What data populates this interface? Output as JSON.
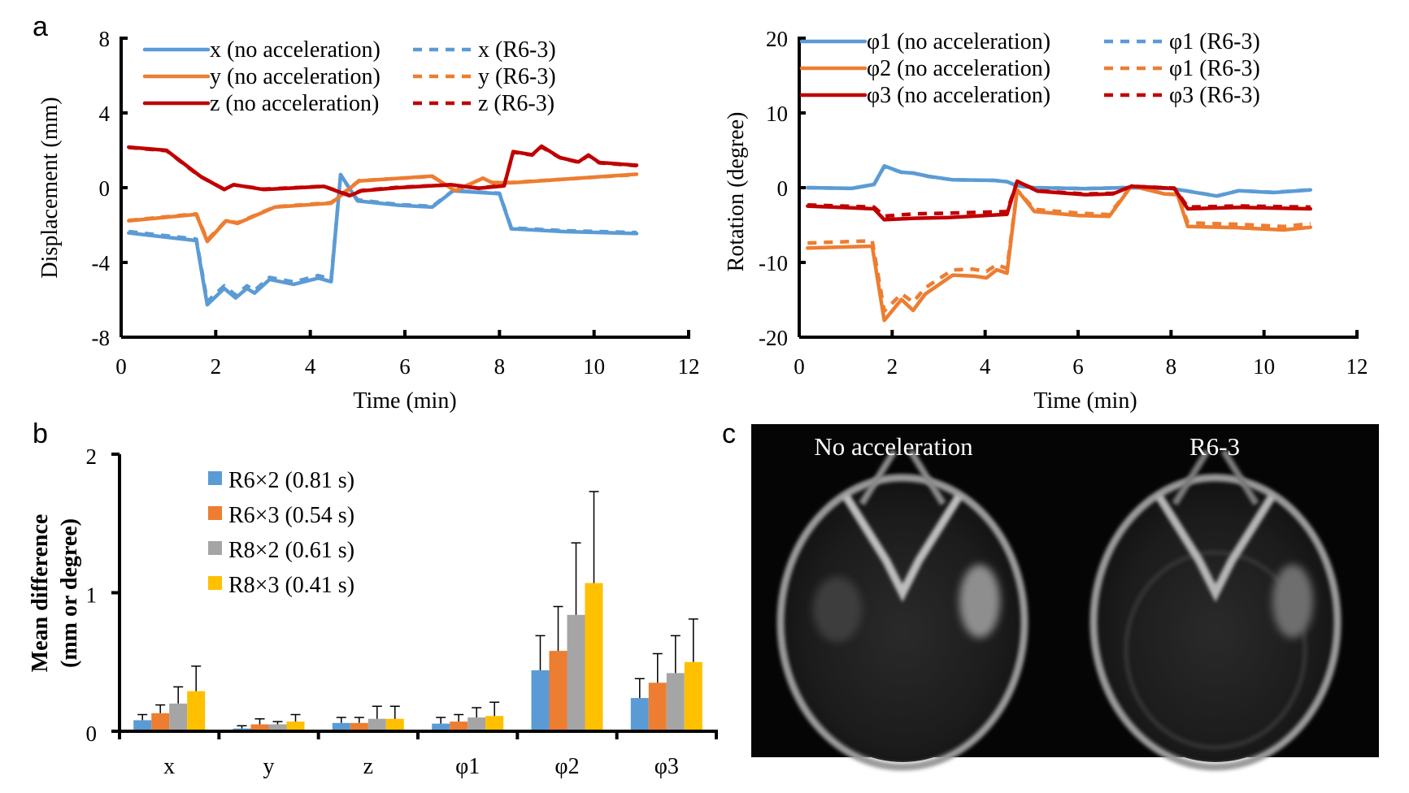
{
  "panel_labels": {
    "a": "a",
    "b": "b",
    "c": "c"
  },
  "colors": {
    "blue": "#5B9BD5",
    "orange": "#ED7D31",
    "red": "#C00000",
    "gray": "#A5A5A5",
    "yellow": "#FFC000",
    "image_bg": "#050505",
    "image_text": "#FFFFFF"
  },
  "chart_data": [
    {
      "id": "displacement",
      "type": "line",
      "panel": "a",
      "xlabel": "Time (min)",
      "ylabel": "Displacement (mm)",
      "xlim": [
        0,
        12
      ],
      "ylim": [
        -8,
        8
      ],
      "xticks": [
        0,
        2,
        4,
        6,
        8,
        10,
        12
      ],
      "yticks": [
        -8,
        -4,
        0,
        4,
        8
      ],
      "grid": false,
      "legend_position": "top",
      "series": [
        {
          "name": "x (no acceleration)",
          "color": "blue",
          "style": "solid",
          "x": [
            0.16,
            1.59,
            1.82,
            2.18,
            2.42,
            2.66,
            2.82,
            3.14,
            3.65,
            4.17,
            4.44,
            4.64,
            5.0,
            5.87,
            6.58,
            7.02,
            8.0,
            8.25,
            9.36,
            10.9
          ],
          "y": [
            -2.42,
            -2.83,
            -6.26,
            -5.39,
            -5.9,
            -5.39,
            -5.64,
            -4.91,
            -5.17,
            -4.84,
            -5.03,
            0.7,
            -0.71,
            -0.94,
            -1.04,
            -0.17,
            -0.32,
            -2.2,
            -2.35,
            -2.45
          ]
        },
        {
          "name": "x (R6-3)",
          "color": "blue",
          "style": "dashed",
          "x": [
            0.16,
            1.59,
            1.82,
            2.18,
            2.42,
            2.66,
            2.82,
            3.14,
            3.65,
            4.17,
            4.44,
            4.64,
            5.0,
            5.87,
            6.58,
            7.02,
            8.0,
            8.25,
            9.36,
            10.9
          ],
          "y": [
            -2.35,
            -2.75,
            -6.1,
            -5.25,
            -5.75,
            -5.25,
            -5.5,
            -4.8,
            -5.05,
            -4.7,
            -4.9,
            0.65,
            -0.65,
            -0.9,
            -1.0,
            -0.15,
            -0.3,
            -2.15,
            -2.3,
            -2.4
          ]
        },
        {
          "name": "y (no acceleration)",
          "color": "orange",
          "style": "solid",
          "x": [
            0.16,
            1.59,
            1.82,
            2.22,
            2.46,
            3.25,
            4.44,
            5.03,
            6.58,
            7.06,
            7.65,
            7.85,
            8.25,
            10.9
          ],
          "y": [
            -1.77,
            -1.43,
            -2.88,
            -1.77,
            -1.91,
            -1.04,
            -0.83,
            0.36,
            0.62,
            -0.17,
            0.51,
            0.26,
            0.26,
            0.72
          ]
        },
        {
          "name": "y (R6-3)",
          "color": "orange",
          "style": "dashed",
          "x": [
            0.16,
            1.59,
            1.82,
            2.22,
            2.46,
            3.25,
            4.44,
            5.03,
            6.58,
            7.06,
            7.65,
            7.85,
            8.25,
            10.9
          ],
          "y": [
            -1.75,
            -1.4,
            -2.8,
            -1.75,
            -1.88,
            -1.02,
            -0.8,
            0.38,
            0.6,
            -0.15,
            0.5,
            0.28,
            0.28,
            0.7
          ]
        },
        {
          "name": "z (no acceleration)",
          "color": "red",
          "style": "solid",
          "x": [
            0.16,
            0.96,
            1.67,
            2.18,
            2.38,
            3.02,
            4.29,
            4.83,
            5.08,
            5.87,
            6.98,
            7.54,
            8.1,
            8.29,
            8.69,
            8.89,
            9.28,
            9.67,
            9.88,
            10.11,
            10.9
          ],
          "y": [
            2.17,
            2.0,
            0.62,
            -0.1,
            0.16,
            -0.1,
            0.07,
            -0.43,
            -0.17,
            0.0,
            0.16,
            -0.03,
            0.1,
            1.93,
            1.76,
            2.22,
            1.61,
            1.38,
            1.75,
            1.35,
            1.2
          ]
        },
        {
          "name": "z (R6-3)",
          "color": "red",
          "style": "dashed",
          "x": [
            0.16,
            0.96,
            1.67,
            2.18,
            2.38,
            3.02,
            4.29,
            4.83,
            5.08,
            5.87,
            6.98,
            7.54,
            8.1,
            8.29,
            8.69,
            8.89,
            9.28,
            9.67,
            9.88,
            10.11,
            10.9
          ],
          "y": [
            2.15,
            1.98,
            0.6,
            -0.08,
            0.15,
            -0.08,
            0.08,
            -0.4,
            -0.15,
            0.02,
            0.15,
            -0.02,
            0.12,
            1.9,
            1.75,
            2.18,
            1.6,
            1.36,
            1.72,
            1.33,
            1.18
          ]
        }
      ]
    },
    {
      "id": "rotation",
      "type": "line",
      "panel": "a",
      "xlabel": "Time (min)",
      "ylabel": "Rotation (degree)",
      "xlim": [
        0,
        12
      ],
      "ylim": [
        -20,
        20
      ],
      "xticks": [
        0,
        2,
        4,
        6,
        8,
        10,
        12
      ],
      "yticks": [
        -20,
        -10,
        0,
        10,
        20
      ],
      "grid": false,
      "legend_position": "top",
      "series": [
        {
          "name": "φ1 (no acceleration)",
          "color": "blue",
          "style": "solid",
          "x": [
            0.18,
            1.13,
            1.61,
            1.83,
            2.2,
            2.45,
            2.78,
            3.3,
            4.18,
            4.47,
            4.69,
            5.06,
            6.16,
            6.97,
            8.0,
            8.36,
            8.99,
            9.46,
            10.2,
            11.0
          ],
          "y": [
            0.0,
            -0.1,
            0.43,
            2.9,
            2.07,
            1.96,
            1.52,
            1.05,
            0.98,
            0.8,
            0.25,
            0.0,
            -0.14,
            0.0,
            -0.1,
            -0.47,
            -1.12,
            -0.4,
            -0.65,
            -0.29
          ]
        },
        {
          "name": "φ1 (R6-3)",
          "color": "blue",
          "style": "dashed",
          "x": [
            0.18,
            1.13,
            1.61,
            1.83,
            2.2,
            2.45,
            2.78,
            3.3,
            4.18,
            4.47,
            4.69,
            5.06,
            6.16,
            6.97,
            8.0,
            8.36,
            8.99,
            9.46,
            10.2,
            11.0
          ],
          "y": [
            0.0,
            -0.1,
            0.43,
            2.85,
            2.05,
            1.95,
            1.5,
            1.05,
            0.98,
            0.8,
            0.25,
            0.0,
            -0.12,
            0.0,
            -0.1,
            -0.45,
            -1.1,
            -0.4,
            -0.62,
            -0.28
          ]
        },
        {
          "name": "φ2 (no acceleration)",
          "color": "orange",
          "style": "solid",
          "x": [
            0.18,
            1.57,
            1.83,
            2.2,
            2.45,
            2.71,
            3.3,
            3.74,
            4.03,
            4.25,
            4.47,
            4.69,
            5.06,
            6.01,
            6.67,
            7.15,
            7.85,
            8.14,
            8.36,
            9.46,
            10.42,
            11.0
          ],
          "y": [
            -8.08,
            -7.83,
            -17.75,
            -14.96,
            -16.41,
            -14.24,
            -11.7,
            -11.81,
            -12.07,
            -10.98,
            -11.45,
            -0.29,
            -3.19,
            -3.73,
            -3.84,
            0.25,
            -0.83,
            -0.94,
            -5.18,
            -5.36,
            -5.65,
            -5.29
          ]
        },
        {
          "name": "φ1 (R6-3)",
          "color": "orange",
          "style": "dashed",
          "x": [
            0.18,
            1.57,
            1.83,
            2.2,
            2.45,
            2.71,
            3.3,
            3.74,
            4.03,
            4.25,
            4.47,
            4.69,
            5.06,
            6.01,
            6.67,
            7.15,
            7.85,
            8.14,
            8.36,
            9.46,
            10.42,
            11.0
          ],
          "y": [
            -7.4,
            -7.1,
            -16.5,
            -14.2,
            -15.3,
            -13.4,
            -11.0,
            -10.9,
            -11.2,
            -10.3,
            -10.8,
            -0.3,
            -2.9,
            -3.4,
            -3.6,
            0.25,
            -0.8,
            -0.9,
            -4.7,
            -4.9,
            -5.2,
            -4.8
          ]
        },
        {
          "name": "φ3 (no acceleration)",
          "color": "red",
          "style": "solid",
          "x": [
            0.18,
            1.61,
            1.83,
            2.49,
            3.22,
            4.47,
            4.69,
            5.13,
            6.16,
            6.75,
            7.15,
            8.07,
            8.36,
            9.46,
            11.0
          ],
          "y": [
            -2.46,
            -2.83,
            -4.28,
            -4.09,
            -3.99,
            -3.55,
            0.87,
            -0.47,
            -0.94,
            -0.83,
            0.18,
            -0.1,
            -2.83,
            -2.64,
            -2.83
          ]
        },
        {
          "name": "φ3 (R6-3)",
          "color": "red",
          "style": "dashed",
          "x": [
            0.18,
            1.61,
            1.83,
            2.49,
            3.22,
            4.47,
            4.69,
            5.13,
            6.16,
            6.75,
            7.15,
            8.07,
            8.36,
            9.46,
            11.0
          ],
          "y": [
            -2.3,
            -2.6,
            -3.8,
            -3.5,
            -3.4,
            -3.2,
            0.85,
            -0.4,
            -0.85,
            -0.75,
            0.2,
            -0.05,
            -2.6,
            -2.45,
            -2.6
          ]
        }
      ]
    },
    {
      "id": "mean-difference",
      "type": "bar",
      "panel": "b",
      "xlabel": "",
      "ylabel_line1": "Mean difference",
      "ylabel_line2": "(mm or degree)",
      "ylim": [
        0,
        2
      ],
      "yticks": [
        0,
        1,
        2
      ],
      "grid": false,
      "legend_position": "top-left",
      "categories": [
        "x",
        "y",
        "z",
        "φ1",
        "φ2",
        "φ3"
      ],
      "series": [
        {
          "name": "R6×2 (0.81 s)",
          "color": "blue",
          "values": [
            0.08,
            0.02,
            0.06,
            0.055,
            0.44,
            0.24
          ],
          "error": [
            0.04,
            0.02,
            0.04,
            0.045,
            0.25,
            0.14
          ]
        },
        {
          "name": "R6×3 (0.54 s)",
          "color": "orange",
          "values": [
            0.13,
            0.05,
            0.06,
            0.07,
            0.58,
            0.35
          ],
          "error": [
            0.06,
            0.04,
            0.04,
            0.05,
            0.32,
            0.21
          ]
        },
        {
          "name": "R8×2 (0.61 s)",
          "color": "gray",
          "values": [
            0.2,
            0.05,
            0.09,
            0.1,
            0.84,
            0.42
          ],
          "error": [
            0.12,
            0.02,
            0.09,
            0.07,
            0.52,
            0.27
          ]
        },
        {
          "name": "R8×3 (0.41 s)",
          "color": "yellow",
          "values": [
            0.29,
            0.07,
            0.09,
            0.11,
            1.07,
            0.5
          ],
          "error": [
            0.18,
            0.05,
            0.09,
            0.1,
            0.66,
            0.31
          ]
        }
      ]
    }
  ],
  "images": {
    "left_label": "No acceleration",
    "right_label": "R6-3"
  }
}
